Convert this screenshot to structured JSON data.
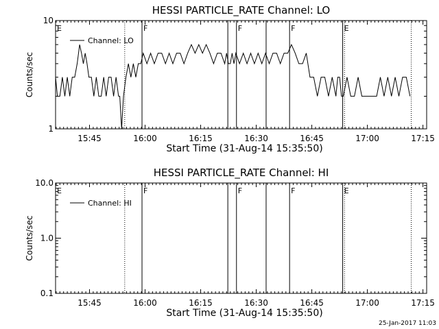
{
  "chart_data": [
    {
      "type": "line",
      "title": "HESSI PARTICLE_RATE Channel: LO",
      "xlabel": "Start Time (31-Aug-14 15:35:50)",
      "ylabel": "Counts/sec",
      "yscale": "log",
      "ylim": [
        1,
        10
      ],
      "xlim": [
        "15:35:50",
        "17:16:00"
      ],
      "x_ticks": [
        "15:45",
        "16:00",
        "16:15",
        "16:30",
        "16:45",
        "17:00",
        "17:15"
      ],
      "y_ticks": [
        "1",
        "10"
      ],
      "legend": [
        "Channel: LO"
      ],
      "legend_position": "top-left",
      "flag_labels": [
        {
          "time": "15:35:50",
          "label": "E"
        },
        {
          "time": "15:59:10",
          "label": "F"
        },
        {
          "time": "16:24:40",
          "label": "F"
        },
        {
          "time": "16:39:00",
          "label": "F"
        },
        {
          "time": "16:53:20",
          "label": "E"
        }
      ],
      "solid_markers": [
        "15:59:10",
        "16:22:20",
        "16:24:40",
        "16:32:40",
        "16:39:00",
        "16:53:20"
      ],
      "dotted_markers": [
        "15:54:30",
        "16:53:50",
        "17:11:50"
      ],
      "series": [
        {
          "name": "Channel: LO",
          "x": [
            "15:35:50",
            "15:36:20",
            "15:37:00",
            "15:37:40",
            "15:38:20",
            "15:39:00",
            "15:39:40",
            "15:40:20",
            "15:41:00",
            "15:41:40",
            "15:42:20",
            "15:42:50",
            "15:43:20",
            "15:43:50",
            "15:44:20",
            "15:44:50",
            "15:45:30",
            "15:46:10",
            "15:46:50",
            "15:47:30",
            "15:48:10",
            "15:48:50",
            "15:49:30",
            "15:50:10",
            "15:50:50",
            "15:51:30",
            "15:52:10",
            "15:52:50",
            "15:53:10",
            "15:53:40",
            "15:54:10",
            "15:54:50",
            "15:55:30",
            "15:56:10",
            "15:56:50",
            "15:57:30",
            "15:58:10",
            "15:58:50",
            "15:59:30",
            "16:00:30",
            "16:01:30",
            "16:02:30",
            "16:03:30",
            "16:04:30",
            "16:05:30",
            "16:06:30",
            "16:07:30",
            "16:08:30",
            "16:09:30",
            "16:10:30",
            "16:11:30",
            "16:12:30",
            "16:13:30",
            "16:14:30",
            "16:15:30",
            "16:16:30",
            "16:17:30",
            "16:18:30",
            "16:19:30",
            "16:20:30",
            "16:21:30",
            "16:22:00",
            "16:22:30",
            "16:23:00",
            "16:23:30",
            "16:24:00",
            "16:24:30",
            "16:25:30",
            "16:26:30",
            "16:27:30",
            "16:28:30",
            "16:29:30",
            "16:30:30",
            "16:31:30",
            "16:32:30",
            "16:33:30",
            "16:34:30",
            "16:35:30",
            "16:36:30",
            "16:37:30",
            "16:38:30",
            "16:39:30",
            "16:40:30",
            "16:41:30",
            "16:42:30",
            "16:43:30",
            "16:44:30",
            "16:45:30",
            "16:46:30",
            "16:47:30",
            "16:48:30",
            "16:49:30",
            "16:50:30",
            "16:51:30",
            "16:52:00",
            "16:52:30",
            "16:53:00",
            "16:53:30",
            "16:54:30",
            "16:55:30",
            "16:56:30",
            "16:57:30",
            "16:58:30",
            "16:59:30",
            "17:00:30",
            "17:01:30",
            "17:02:30",
            "17:03:30",
            "17:04:30",
            "17:05:30",
            "17:06:30",
            "17:07:30",
            "17:08:30",
            "17:09:30",
            "17:10:30",
            "17:11:30"
          ],
          "values": [
            3,
            2,
            2,
            3,
            2,
            3,
            2,
            3,
            3,
            4,
            6,
            5,
            4,
            5,
            4,
            3,
            3,
            2,
            3,
            2,
            2,
            3,
            2,
            3,
            3,
            2,
            3,
            2,
            2,
            1,
            2,
            3,
            4,
            3,
            4,
            3,
            4,
            4,
            5,
            4,
            5,
            4,
            5,
            5,
            4,
            5,
            4,
            5,
            5,
            4,
            5,
            6,
            5,
            6,
            5,
            6,
            5,
            4,
            5,
            5,
            4,
            5,
            4,
            4,
            5,
            4,
            5,
            4,
            5,
            4,
            5,
            4,
            5,
            4,
            5,
            4,
            5,
            5,
            4,
            5,
            5,
            6,
            5,
            4,
            4,
            5,
            3,
            3,
            2,
            3,
            3,
            2,
            3,
            2,
            3,
            3,
            2,
            2,
            3,
            2,
            2,
            3,
            2,
            2,
            2,
            2,
            2,
            3,
            2,
            3,
            2,
            3,
            2,
            3,
            3,
            2
          ]
        }
      ]
    },
    {
      "type": "line",
      "title": "HESSI PARTICLE_RATE Channel: HI",
      "xlabel": "Start Time (31-Aug-14 15:35:50)",
      "ylabel": "Counts/sec",
      "yscale": "log",
      "ylim": [
        0.1,
        10
      ],
      "xlim": [
        "15:35:50",
        "17:16:00"
      ],
      "x_ticks": [
        "15:45",
        "16:00",
        "16:15",
        "16:30",
        "16:45",
        "17:00",
        "17:15"
      ],
      "y_ticks": [
        "0.1",
        "1.0",
        "10.0"
      ],
      "legend": [
        "Channel: HI"
      ],
      "legend_position": "top-left",
      "flag_labels": [
        {
          "time": "15:35:50",
          "label": "E"
        },
        {
          "time": "15:59:10",
          "label": "F"
        },
        {
          "time": "16:24:40",
          "label": "F"
        },
        {
          "time": "16:39:00",
          "label": "F"
        },
        {
          "time": "16:53:20",
          "label": "E"
        }
      ],
      "solid_markers": [
        "15:59:10",
        "16:22:20",
        "16:24:40",
        "16:32:40",
        "16:39:00",
        "16:53:20"
      ],
      "dotted_markers": [
        "15:54:30",
        "16:53:50",
        "17:11:50"
      ],
      "series": [
        {
          "name": "Channel: HI",
          "x": [],
          "values": []
        }
      ]
    }
  ],
  "footer": {
    "timestamp": "25-Jan-2017 11:03"
  }
}
